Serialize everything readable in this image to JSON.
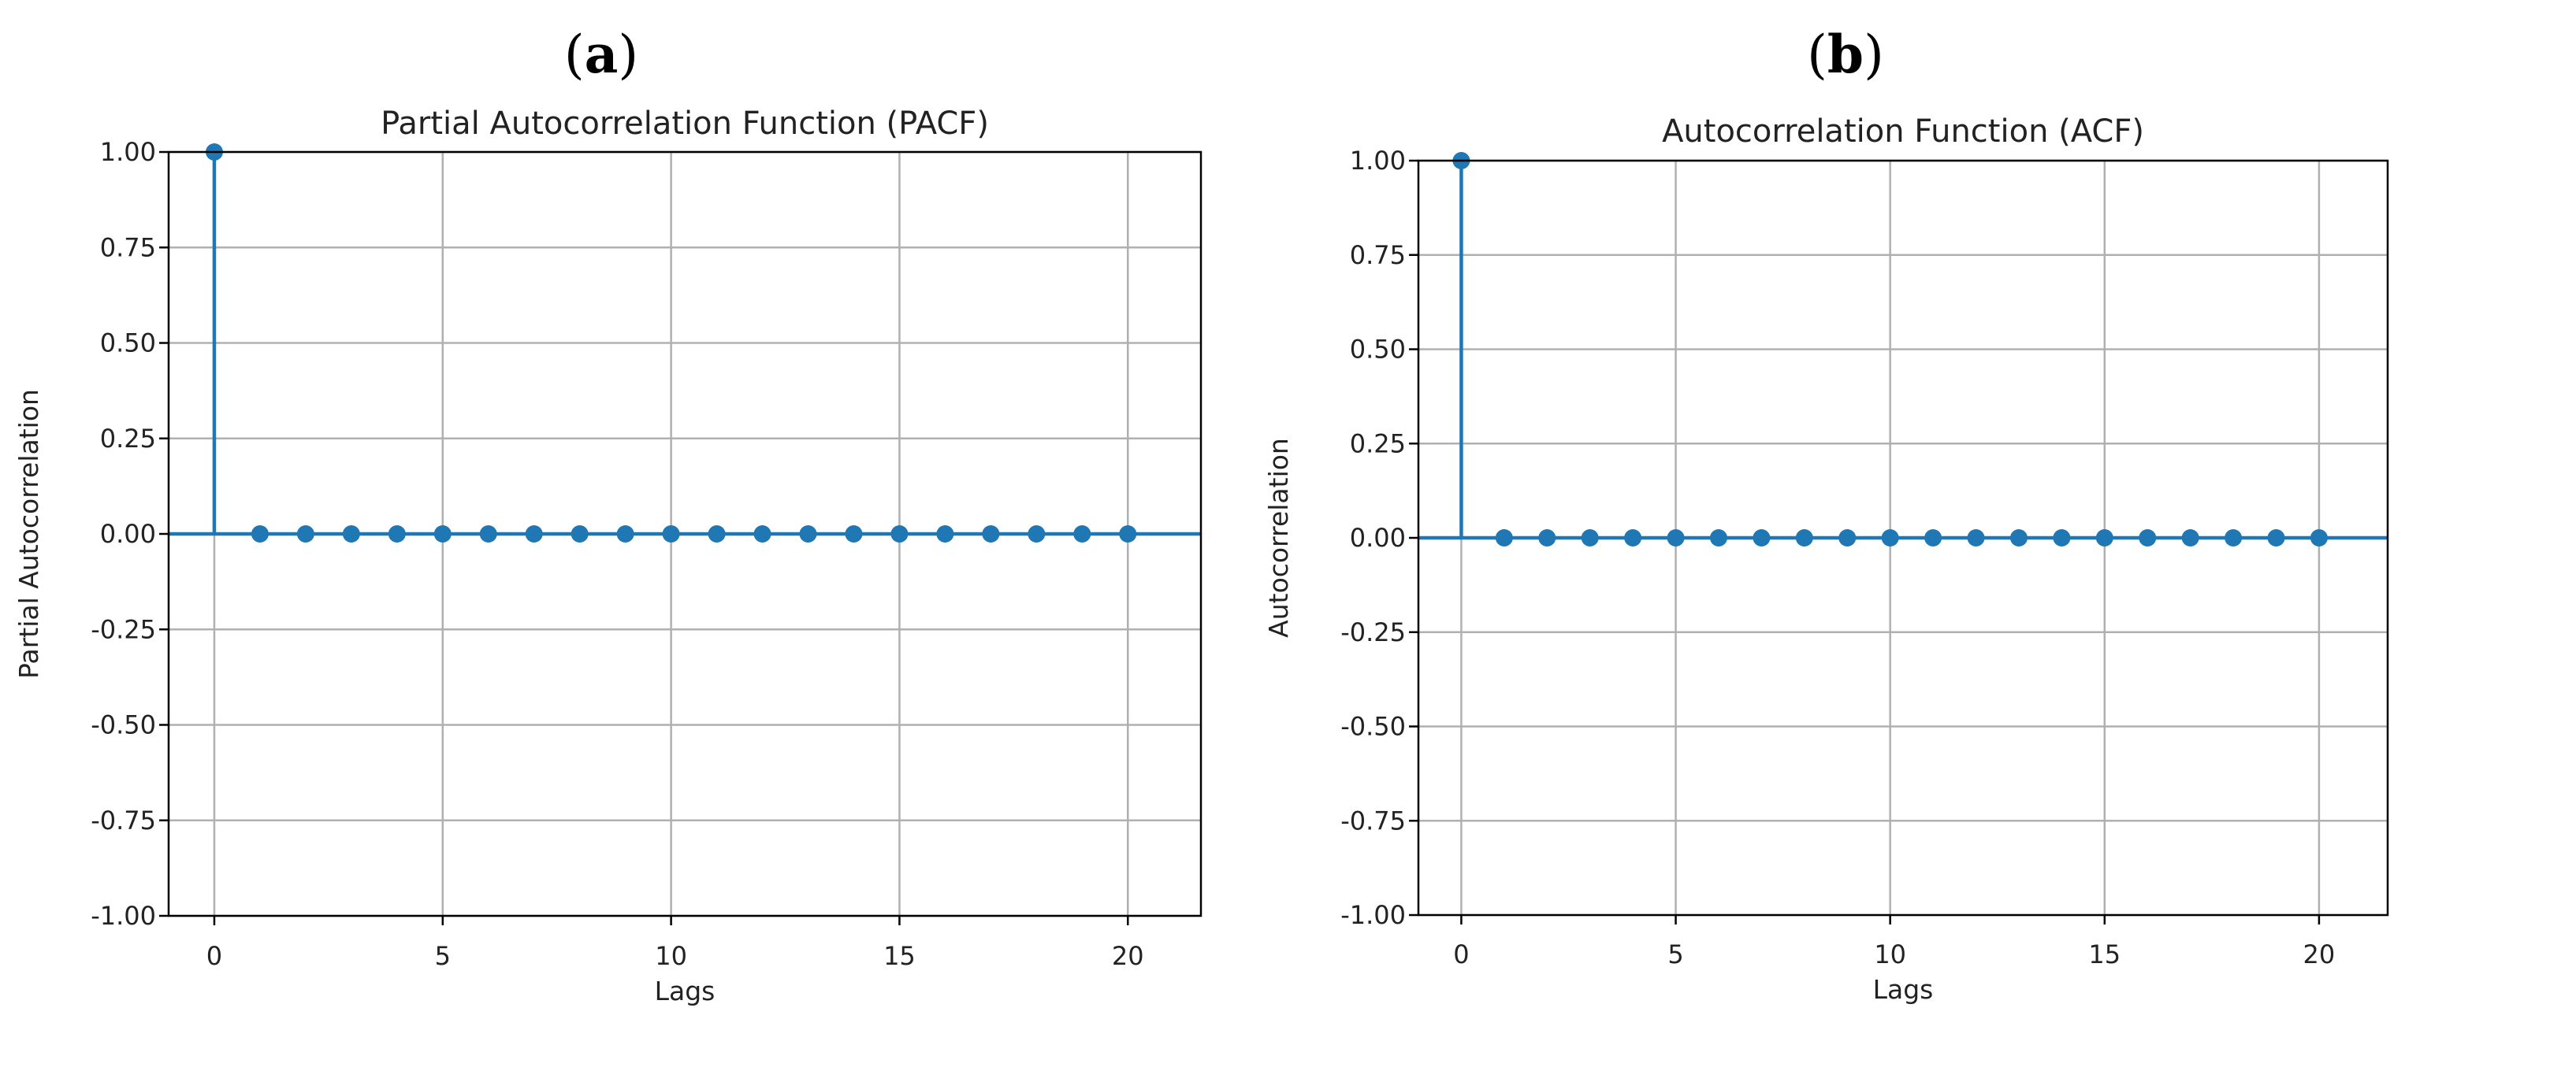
{
  "panels": [
    {
      "open": "(",
      "letter": "a",
      "close": ")"
    },
    {
      "open": "(",
      "letter": "b",
      "close": ")"
    }
  ],
  "colors": {
    "stem": "#1f77b4",
    "grid": "#b0b0b0",
    "axis": "#000000"
  },
  "chart_data": [
    {
      "type": "stem",
      "title": "Partial Autocorrelation Function (PACF)",
      "xlabel": "Lags",
      "ylabel": "Partial Autocorrelation",
      "x": [
        0,
        1,
        2,
        3,
        4,
        5,
        6,
        7,
        8,
        9,
        10,
        11,
        12,
        13,
        14,
        15,
        16,
        17,
        18,
        19,
        20
      ],
      "y": [
        1,
        0,
        0,
        0,
        0,
        0,
        0,
        0,
        0,
        0,
        0,
        0,
        0,
        0,
        0,
        0,
        0,
        0,
        0,
        0,
        0
      ],
      "xlim": [
        -1,
        21.6
      ],
      "ylim": [
        -1,
        1
      ],
      "xticks": [
        0,
        5,
        10,
        15,
        20
      ],
      "yticks": [
        "-1.00",
        "-0.75",
        "-0.50",
        "-0.25",
        "0.00",
        "0.25",
        "0.50",
        "0.75",
        "1.00"
      ],
      "grid": true
    },
    {
      "type": "stem",
      "title": "Autocorrelation Function (ACF)",
      "xlabel": "Lags",
      "ylabel": "Autocorrelation",
      "x": [
        0,
        1,
        2,
        3,
        4,
        5,
        6,
        7,
        8,
        9,
        10,
        11,
        12,
        13,
        14,
        15,
        16,
        17,
        18,
        19,
        20
      ],
      "y": [
        1,
        0,
        0,
        0,
        0,
        0,
        0,
        0,
        0,
        0,
        0,
        0,
        0,
        0,
        0,
        0,
        0,
        0,
        0,
        0,
        0
      ],
      "xlim": [
        -1,
        21.6
      ],
      "ylim": [
        -1,
        1
      ],
      "xticks": [
        0,
        5,
        10,
        15,
        20
      ],
      "yticks": [
        "-1.00",
        "-0.75",
        "-0.50",
        "-0.25",
        "0.00",
        "0.25",
        "0.50",
        "0.75",
        "1.00"
      ],
      "grid": true
    }
  ]
}
